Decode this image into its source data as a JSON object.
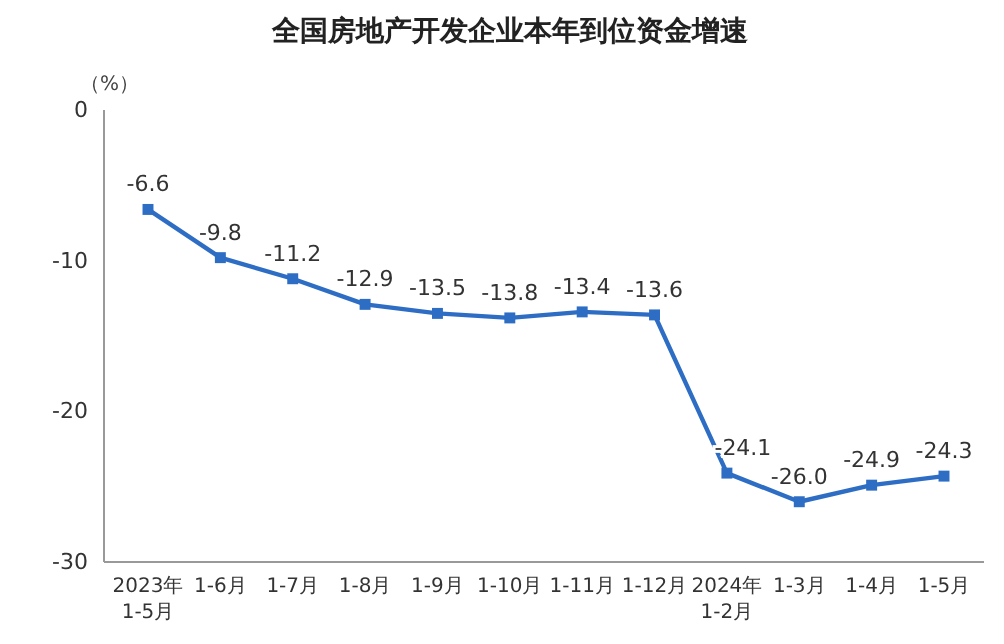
{
  "chart_data": {
    "type": "line",
    "title": "全国房地产开发企业本年到位资金增速",
    "ylabel": "（%）",
    "categories": [
      "2023年\n1-5月",
      "1-6月",
      "1-7月",
      "1-8月",
      "1-9月",
      "1-10月",
      "1-11月",
      "1-12月",
      "2024年\n1-2月",
      "1-3月",
      "1-4月",
      "1-5月"
    ],
    "series": [
      {
        "color": "#2e6dc4",
        "values": [
          -6.6,
          -9.8,
          -11.2,
          -12.9,
          -13.5,
          -13.8,
          -13.4,
          -13.6,
          -24.1,
          -26.0,
          -24.9,
          -24.3
        ],
        "value_labels": [
          "-6.6",
          "-9.8",
          "-11.2",
          "-12.9",
          "-13.5",
          "-13.8",
          "-13.4",
          "-13.6",
          "-24.1",
          "-26.0",
          "-24.9",
          "-24.3"
        ]
      }
    ],
    "ylim": [
      -30,
      0
    ],
    "yticks": [
      0,
      -10,
      -20,
      -30
    ],
    "marker": "square",
    "line_style": "solid",
    "grid": false
  }
}
